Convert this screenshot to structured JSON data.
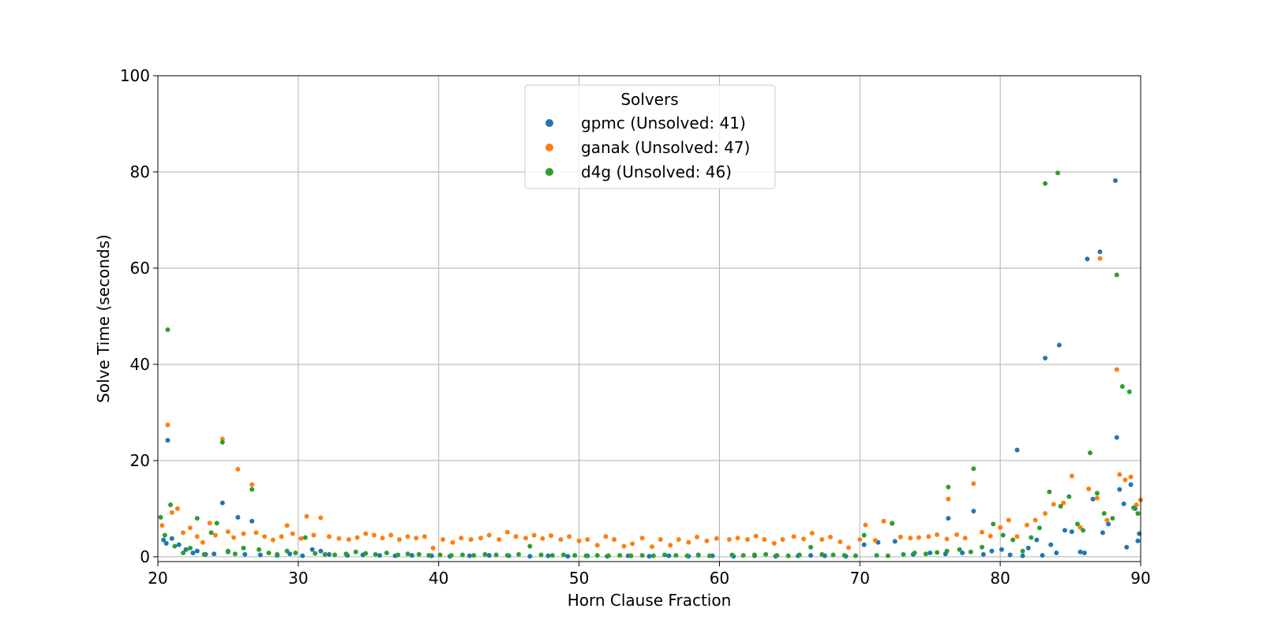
{
  "chart_data": {
    "type": "scatter",
    "xlabel": "Horn Clause Fraction",
    "ylabel": "Solve Time (seconds)",
    "xlim": [
      20,
      90
    ],
    "ylim": [
      -1,
      100
    ],
    "xticks": [
      20,
      30,
      40,
      50,
      60,
      70,
      80,
      90
    ],
    "yticks": [
      0,
      20,
      40,
      60,
      80,
      100
    ],
    "grid": true,
    "legend": {
      "title": "Solvers",
      "placement": "top-center"
    },
    "series": [
      {
        "name": "gpmc (Unsolved: 41)",
        "color": "#1f77b4",
        "points": [
          [
            20.4,
            3.5
          ],
          [
            20.6,
            2.8
          ],
          [
            20.7,
            24.2
          ],
          [
            21.0,
            3.8
          ],
          [
            21.5,
            2.5
          ],
          [
            22.0,
            1.5
          ],
          [
            22.5,
            0.8
          ],
          [
            22.8,
            1.2
          ],
          [
            23.4,
            0.5
          ],
          [
            24.0,
            0.6
          ],
          [
            24.6,
            11.2
          ],
          [
            25.0,
            1.0
          ],
          [
            25.7,
            8.2
          ],
          [
            26.2,
            0.5
          ],
          [
            26.7,
            7.4
          ],
          [
            27.3,
            0.4
          ],
          [
            28.5,
            0.3
          ],
          [
            29.4,
            0.6
          ],
          [
            30.3,
            0.2
          ],
          [
            31.0,
            1.5
          ],
          [
            31.6,
            1.2
          ],
          [
            32.2,
            0.5
          ],
          [
            33.5,
            0.3
          ],
          [
            34.6,
            0.4
          ],
          [
            35.8,
            0.3
          ],
          [
            36.9,
            0.2
          ],
          [
            38.1,
            0.3
          ],
          [
            39.5,
            0.2
          ],
          [
            40.8,
            0.1
          ],
          [
            42.2,
            0.2
          ],
          [
            43.6,
            0.3
          ],
          [
            45.0,
            0.2
          ],
          [
            46.5,
            0.1
          ],
          [
            47.8,
            0.2
          ],
          [
            49.2,
            0.1
          ],
          [
            50.6,
            0.2
          ],
          [
            52.0,
            0.1
          ],
          [
            53.5,
            0.2
          ],
          [
            55.0,
            0.1
          ],
          [
            56.4,
            0.2
          ],
          [
            57.8,
            0.1
          ],
          [
            58.5,
            0.4
          ],
          [
            59.5,
            0.2
          ],
          [
            61.0,
            0.1
          ],
          [
            62.5,
            0.2
          ],
          [
            64.0,
            0.1
          ],
          [
            65.6,
            0.2
          ],
          [
            66.5,
            0.3
          ],
          [
            67.5,
            0.2
          ],
          [
            69.0,
            0.1
          ],
          [
            70.3,
            2.5
          ],
          [
            71.3,
            3.0
          ],
          [
            72.5,
            3.2
          ],
          [
            73.8,
            0.5
          ],
          [
            75.0,
            0.8
          ],
          [
            76.1,
            0.6
          ],
          [
            76.3,
            8.0
          ],
          [
            77.3,
            0.8
          ],
          [
            78.1,
            9.5
          ],
          [
            78.8,
            0.5
          ],
          [
            79.4,
            1.2
          ],
          [
            80.1,
            1.5
          ],
          [
            80.7,
            0.4
          ],
          [
            81.2,
            22.2
          ],
          [
            81.6,
            0.2
          ],
          [
            82.0,
            1.8
          ],
          [
            82.6,
            3.5
          ],
          [
            83.0,
            0.3
          ],
          [
            83.2,
            41.3
          ],
          [
            83.6,
            2.5
          ],
          [
            84.0,
            0.8
          ],
          [
            84.2,
            44.0
          ],
          [
            84.6,
            5.5
          ],
          [
            85.1,
            5.2
          ],
          [
            85.7,
            1.0
          ],
          [
            86.0,
            0.8
          ],
          [
            86.2,
            61.9
          ],
          [
            86.6,
            12.0
          ],
          [
            87.1,
            63.4
          ],
          [
            87.3,
            5.0
          ],
          [
            87.7,
            6.8
          ],
          [
            88.2,
            78.2
          ],
          [
            88.3,
            24.8
          ],
          [
            88.5,
            14.0
          ],
          [
            88.8,
            11.0
          ],
          [
            89.0,
            2.0
          ],
          [
            89.3,
            15.0
          ],
          [
            89.6,
            10.0
          ],
          [
            89.9,
            4.8
          ],
          [
            89.8,
            3.3
          ]
        ]
      },
      {
        "name": "ganak (Unsolved: 47)",
        "color": "#ff7f0e",
        "points": [
          [
            20.3,
            6.5
          ],
          [
            20.7,
            27.4
          ],
          [
            21.0,
            9.2
          ],
          [
            21.4,
            10.0
          ],
          [
            21.8,
            5.0
          ],
          [
            22.3,
            6.0
          ],
          [
            22.8,
            4.2
          ],
          [
            23.2,
            3.0
          ],
          [
            23.7,
            7.0
          ],
          [
            24.1,
            4.5
          ],
          [
            24.6,
            24.5
          ],
          [
            25.0,
            5.2
          ],
          [
            25.4,
            4.0
          ],
          [
            25.7,
            18.2
          ],
          [
            26.1,
            4.8
          ],
          [
            26.7,
            15.0
          ],
          [
            27.0,
            5.0
          ],
          [
            27.6,
            4.2
          ],
          [
            28.2,
            3.5
          ],
          [
            28.8,
            4.2
          ],
          [
            29.2,
            6.5
          ],
          [
            29.6,
            4.8
          ],
          [
            30.2,
            3.8
          ],
          [
            30.6,
            8.4
          ],
          [
            31.1,
            4.5
          ],
          [
            31.6,
            8.1
          ],
          [
            32.2,
            4.2
          ],
          [
            32.9,
            3.8
          ],
          [
            33.6,
            3.6
          ],
          [
            34.2,
            4.0
          ],
          [
            34.8,
            4.8
          ],
          [
            35.4,
            4.5
          ],
          [
            36.0,
            3.9
          ],
          [
            36.6,
            4.5
          ],
          [
            37.2,
            3.6
          ],
          [
            37.8,
            4.2
          ],
          [
            38.4,
            3.9
          ],
          [
            39.0,
            4.2
          ],
          [
            39.6,
            1.8
          ],
          [
            40.3,
            3.6
          ],
          [
            41.0,
            3.0
          ],
          [
            41.6,
            3.9
          ],
          [
            42.3,
            3.6
          ],
          [
            43.0,
            3.9
          ],
          [
            43.6,
            4.5
          ],
          [
            44.3,
            3.6
          ],
          [
            44.9,
            5.1
          ],
          [
            45.5,
            4.2
          ],
          [
            46.2,
            3.9
          ],
          [
            46.8,
            4.5
          ],
          [
            47.4,
            3.8
          ],
          [
            48.0,
            4.4
          ],
          [
            48.7,
            3.6
          ],
          [
            49.3,
            4.2
          ],
          [
            50.0,
            3.3
          ],
          [
            50.6,
            3.6
          ],
          [
            51.3,
            2.4
          ],
          [
            51.9,
            4.2
          ],
          [
            52.5,
            3.6
          ],
          [
            53.2,
            2.2
          ],
          [
            53.8,
            2.7
          ],
          [
            54.5,
            3.9
          ],
          [
            55.2,
            2.1
          ],
          [
            55.8,
            3.6
          ],
          [
            56.5,
            2.4
          ],
          [
            57.1,
            3.6
          ],
          [
            57.8,
            3.0
          ],
          [
            58.4,
            4.1
          ],
          [
            59.1,
            3.3
          ],
          [
            59.8,
            3.8
          ],
          [
            60.7,
            3.6
          ],
          [
            61.3,
            3.9
          ],
          [
            62.0,
            3.6
          ],
          [
            62.6,
            4.3
          ],
          [
            63.2,
            3.6
          ],
          [
            63.9,
            2.8
          ],
          [
            64.5,
            3.6
          ],
          [
            65.3,
            4.2
          ],
          [
            66.0,
            3.7
          ],
          [
            66.6,
            4.9
          ],
          [
            67.3,
            3.6
          ],
          [
            67.9,
            4.1
          ],
          [
            68.6,
            3.1
          ],
          [
            69.2,
            1.9
          ],
          [
            70.0,
            3.6
          ],
          [
            70.4,
            6.6
          ],
          [
            71.1,
            3.4
          ],
          [
            71.7,
            7.4
          ],
          [
            72.3,
            6.9
          ],
          [
            72.9,
            4.1
          ],
          [
            73.6,
            3.9
          ],
          [
            74.2,
            4.0
          ],
          [
            74.9,
            4.2
          ],
          [
            75.5,
            4.6
          ],
          [
            76.2,
            3.7
          ],
          [
            76.3,
            12.0
          ],
          [
            76.9,
            4.6
          ],
          [
            77.5,
            3.9
          ],
          [
            78.1,
            15.2
          ],
          [
            78.7,
            5.1
          ],
          [
            79.3,
            4.3
          ],
          [
            80.0,
            6.1
          ],
          [
            80.6,
            7.6
          ],
          [
            81.2,
            4.2
          ],
          [
            81.9,
            6.6
          ],
          [
            82.5,
            7.6
          ],
          [
            83.2,
            9.0
          ],
          [
            83.8,
            10.9
          ],
          [
            84.5,
            11.2
          ],
          [
            85.1,
            16.8
          ],
          [
            85.7,
            6.1
          ],
          [
            86.3,
            14.1
          ],
          [
            86.9,
            12.2
          ],
          [
            87.1,
            62.0
          ],
          [
            87.6,
            7.6
          ],
          [
            88.3,
            38.9
          ],
          [
            88.5,
            17.1
          ],
          [
            88.9,
            16.0
          ],
          [
            89.3,
            16.6
          ],
          [
            89.7,
            10.8
          ],
          [
            90.0,
            11.8
          ]
        ]
      },
      {
        "name": "d4g (Unsolved: 46)",
        "color": "#2ca02c",
        "points": [
          [
            20.2,
            8.2
          ],
          [
            20.5,
            4.5
          ],
          [
            20.7,
            47.2
          ],
          [
            20.9,
            10.8
          ],
          [
            21.2,
            2.2
          ],
          [
            21.8,
            0.8
          ],
          [
            22.3,
            1.8
          ],
          [
            22.8,
            8.0
          ],
          [
            23.3,
            0.5
          ],
          [
            23.8,
            5.0
          ],
          [
            24.2,
            7.0
          ],
          [
            24.6,
            23.8
          ],
          [
            25.0,
            1.2
          ],
          [
            25.5,
            0.6
          ],
          [
            26.1,
            1.8
          ],
          [
            26.7,
            14.0
          ],
          [
            27.2,
            1.5
          ],
          [
            27.9,
            0.8
          ],
          [
            28.5,
            0.5
          ],
          [
            29.2,
            1.2
          ],
          [
            29.8,
            0.8
          ],
          [
            30.5,
            4.0
          ],
          [
            31.2,
            0.7
          ],
          [
            31.9,
            0.5
          ],
          [
            32.6,
            0.4
          ],
          [
            33.4,
            0.6
          ],
          [
            34.1,
            1.0
          ],
          [
            34.8,
            0.7
          ],
          [
            35.5,
            0.5
          ],
          [
            36.3,
            0.8
          ],
          [
            37.1,
            0.4
          ],
          [
            37.8,
            0.6
          ],
          [
            38.6,
            0.5
          ],
          [
            39.3,
            0.3
          ],
          [
            40.1,
            0.4
          ],
          [
            40.9,
            0.3
          ],
          [
            41.7,
            0.4
          ],
          [
            42.5,
            0.3
          ],
          [
            43.3,
            0.5
          ],
          [
            44.1,
            0.4
          ],
          [
            44.9,
            0.3
          ],
          [
            45.7,
            0.5
          ],
          [
            46.5,
            2.2
          ],
          [
            47.3,
            0.4
          ],
          [
            48.1,
            0.3
          ],
          [
            48.9,
            0.4
          ],
          [
            49.7,
            0.3
          ],
          [
            50.5,
            0.2
          ],
          [
            51.3,
            0.3
          ],
          [
            52.1,
            0.2
          ],
          [
            52.9,
            0.3
          ],
          [
            53.7,
            0.2
          ],
          [
            54.5,
            0.3
          ],
          [
            55.3,
            0.2
          ],
          [
            56.1,
            0.4
          ],
          [
            56.9,
            0.3
          ],
          [
            57.7,
            0.2
          ],
          [
            58.5,
            0.3
          ],
          [
            59.3,
            0.2
          ],
          [
            60.9,
            0.4
          ],
          [
            61.7,
            0.3
          ],
          [
            62.5,
            0.4
          ],
          [
            63.3,
            0.5
          ],
          [
            64.1,
            0.3
          ],
          [
            64.9,
            0.2
          ],
          [
            65.7,
            0.4
          ],
          [
            66.5,
            2.0
          ],
          [
            67.3,
            0.5
          ],
          [
            68.1,
            0.4
          ],
          [
            68.9,
            0.3
          ],
          [
            69.7,
            0.2
          ],
          [
            70.3,
            4.5
          ],
          [
            71.2,
            0.3
          ],
          [
            72.0,
            0.2
          ],
          [
            72.3,
            7.0
          ],
          [
            73.1,
            0.5
          ],
          [
            73.9,
            0.8
          ],
          [
            74.7,
            0.6
          ],
          [
            75.5,
            0.9
          ],
          [
            76.2,
            1.2
          ],
          [
            76.3,
            14.5
          ],
          [
            77.1,
            1.5
          ],
          [
            77.9,
            1.0
          ],
          [
            78.1,
            18.3
          ],
          [
            78.7,
            2.0
          ],
          [
            79.5,
            6.8
          ],
          [
            80.2,
            4.5
          ],
          [
            80.9,
            3.5
          ],
          [
            81.6,
            1.2
          ],
          [
            82.2,
            4.0
          ],
          [
            82.8,
            6.0
          ],
          [
            83.2,
            77.6
          ],
          [
            83.5,
            13.5
          ],
          [
            84.1,
            79.8
          ],
          [
            84.3,
            10.5
          ],
          [
            84.9,
            12.5
          ],
          [
            85.5,
            6.8
          ],
          [
            85.9,
            5.5
          ],
          [
            86.4,
            21.6
          ],
          [
            86.9,
            13.2
          ],
          [
            87.4,
            9.0
          ],
          [
            88.0,
            8.0
          ],
          [
            88.3,
            58.6
          ],
          [
            88.7,
            35.4
          ],
          [
            89.2,
            34.3
          ],
          [
            89.5,
            10.2
          ],
          [
            89.8,
            9.0
          ]
        ]
      }
    ]
  }
}
